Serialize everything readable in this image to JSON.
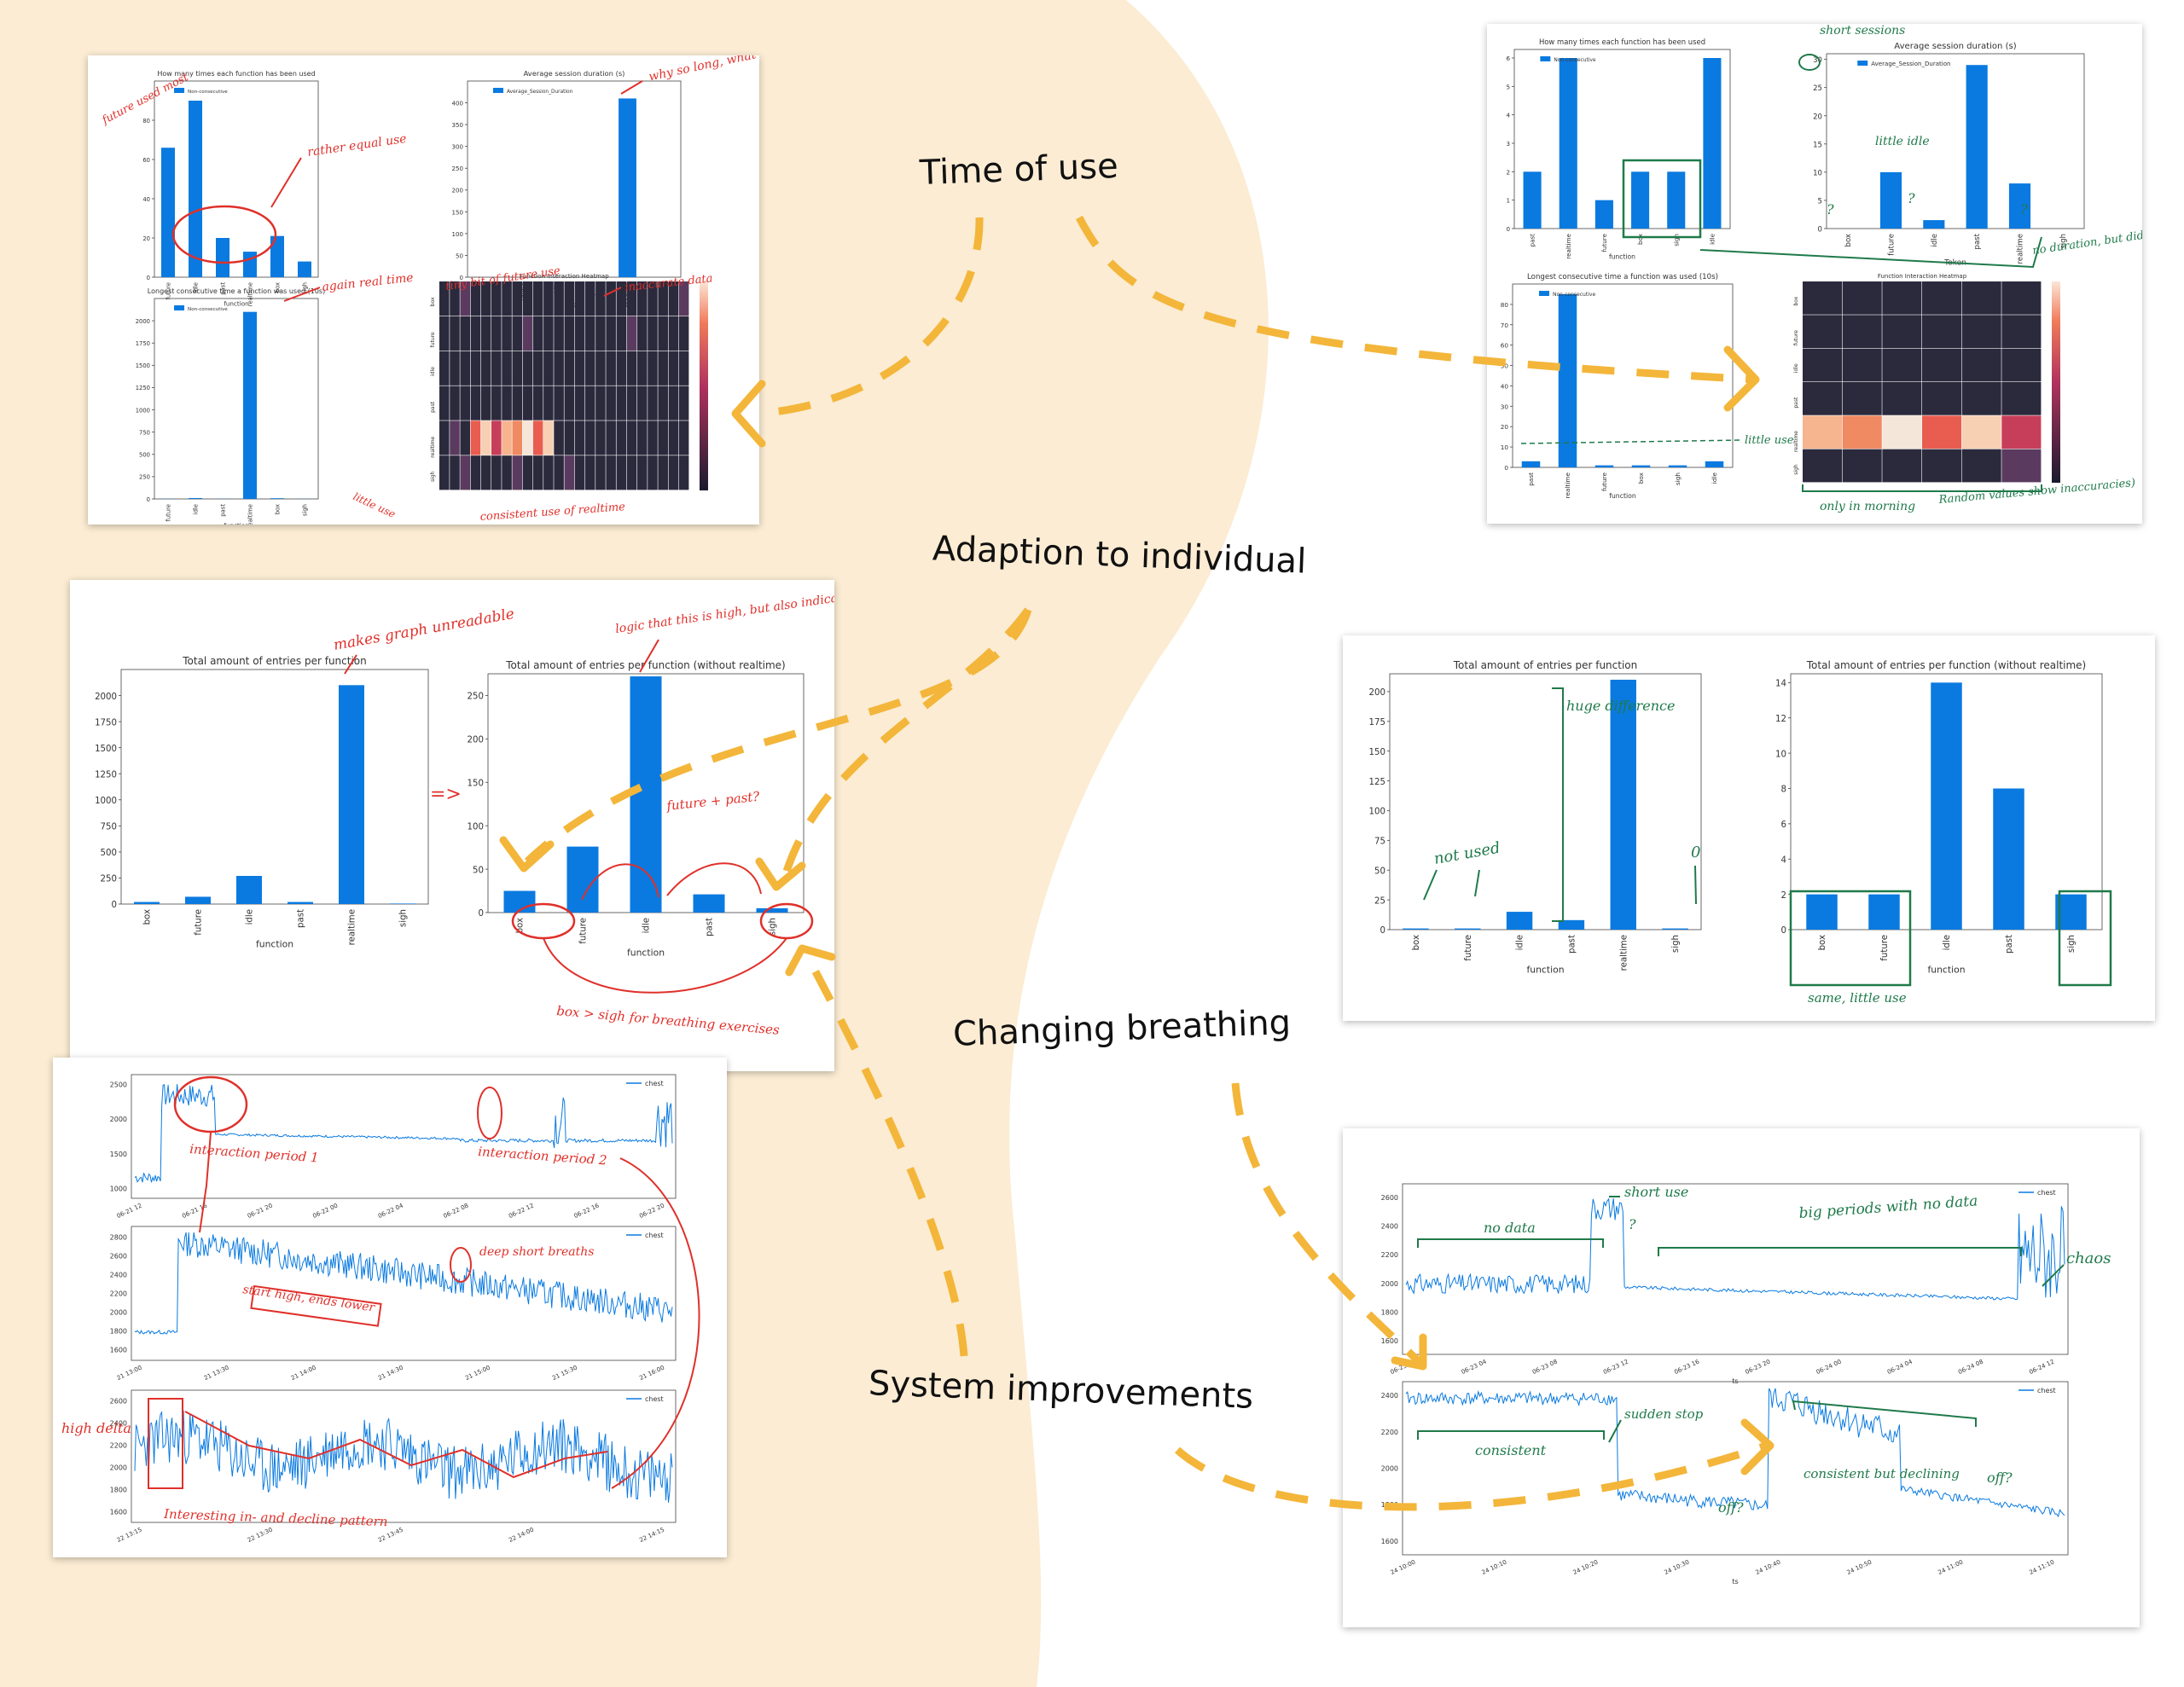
{
  "themes": {
    "time_of_use": "Time of use",
    "adaption": "Adaption to individual",
    "breathing": "Changing breathing",
    "system": "System improvements"
  },
  "colors": {
    "background_blob": "#fbecd3",
    "bar_blue": "#0a7ae0",
    "red_ink": "#e0302a",
    "green_ink": "#1f7a4a",
    "arrow_yellow": "#f3b63a"
  },
  "chart_data": [
    {
      "id": "p1a",
      "type": "bar",
      "title": "How many times each function has been used",
      "legend": [
        "Non-consecutive"
      ],
      "categories": [
        "future",
        "idle",
        "past",
        "realtime",
        "box",
        "sigh"
      ],
      "values": [
        66,
        90,
        20,
        13,
        21,
        8
      ],
      "xlabel": "function",
      "ylim": [
        0,
        100
      ],
      "yticks": [
        "0",
        "20",
        "40",
        "60",
        "80"
      ]
    },
    {
      "id": "p1b",
      "type": "bar",
      "title": "Average session duration (s)",
      "legend": [
        "Average_Session_Duration"
      ],
      "categories": [
        "box",
        "future",
        "idle",
        "past",
        "realtime",
        "sigh"
      ],
      "values": [
        0,
        0,
        0,
        0,
        410,
        0
      ],
      "xlabel": "Token",
      "ylim": [
        0,
        450
      ],
      "yticks": [
        "0",
        "50",
        "100",
        "150",
        "200",
        "250",
        "300",
        "350",
        "400"
      ]
    },
    {
      "id": "p1c",
      "type": "bar",
      "title": "Longest consecutive time a function was used (10s)",
      "legend": [
        "Non-consecutive"
      ],
      "categories": [
        "future",
        "idle",
        "past",
        "realtime",
        "box",
        "sigh"
      ],
      "values": [
        2,
        10,
        2,
        2100,
        8,
        2
      ],
      "xlabel": "function",
      "ylim": [
        0,
        2250
      ],
      "yticks": [
        "0",
        "250",
        "500",
        "750",
        "1000",
        "1250",
        "1500",
        "1750",
        "2000"
      ]
    },
    {
      "id": "p1d",
      "type": "heatmap",
      "title": "Function Interaction Heatmap",
      "rows": [
        "box",
        "future",
        "idle",
        "past",
        "realtime",
        "sigh"
      ],
      "columns": 24,
      "xlabel": "Hour of the Day",
      "ylabel": "Function"
    },
    {
      "id": "p2a",
      "type": "bar",
      "title": "How many times each function has been used",
      "legend": [
        "Non-consecutive"
      ],
      "categories": [
        "past",
        "realtime",
        "future",
        "box",
        "sigh",
        "idle"
      ],
      "values": [
        2,
        6,
        1,
        2,
        2,
        6
      ],
      "xlabel": "function",
      "ylim": [
        0,
        6.3
      ],
      "yticks": [
        "0",
        "1",
        "2",
        "3",
        "4",
        "5",
        "6"
      ]
    },
    {
      "id": "p2b",
      "type": "bar",
      "title": "Average session duration (s)",
      "legend": [
        "Average_Session_Duration"
      ],
      "categories": [
        "box",
        "future",
        "idle",
        "past",
        "realtime",
        "sigh"
      ],
      "values": [
        0,
        10,
        1.5,
        29,
        8,
        0
      ],
      "xlabel": "Token",
      "ylim": [
        0,
        31
      ],
      "yticks": [
        "0",
        "5",
        "10",
        "15",
        "20",
        "25",
        "30"
      ]
    },
    {
      "id": "p2c",
      "type": "bar",
      "title": "Longest consecutive time a function was used (10s)",
      "legend": [
        "Non-consecutive"
      ],
      "categories": [
        "past",
        "realtime",
        "future",
        "box",
        "sigh",
        "idle"
      ],
      "values": [
        3,
        85,
        1,
        1,
        1,
        3
      ],
      "xlabel": "function",
      "ylim": [
        0,
        90
      ],
      "yticks": [
        "0",
        "10",
        "20",
        "30",
        "40",
        "50",
        "60",
        "70",
        "80"
      ]
    },
    {
      "id": "p2d",
      "type": "heatmap",
      "title": "Function Interaction Heatmap",
      "rows": [
        "box",
        "future",
        "idle",
        "past",
        "realtime",
        "sigh"
      ],
      "columns": 6
    },
    {
      "id": "p3a",
      "type": "bar",
      "title": "Total amount of entries per function",
      "categories": [
        "box",
        "future",
        "idle",
        "past",
        "realtime",
        "sigh"
      ],
      "values": [
        20,
        70,
        270,
        20,
        2100,
        5
      ],
      "xlabel": "function",
      "ylim": [
        0,
        2250
      ],
      "yticks": [
        "0",
        "250",
        "500",
        "750",
        "1000",
        "1250",
        "1500",
        "1750",
        "2000"
      ]
    },
    {
      "id": "p3b",
      "type": "bar",
      "title": "Total amount of entries per function (without realtime)",
      "categories": [
        "box",
        "future",
        "idle",
        "past",
        "sigh"
      ],
      "values": [
        25,
        76,
        272,
        21,
        5
      ],
      "xlabel": "function",
      "ylim": [
        0,
        275
      ],
      "yticks": [
        "0",
        "50",
        "100",
        "150",
        "200",
        "250"
      ]
    },
    {
      "id": "p4a",
      "type": "bar",
      "title": "Total amount of entries per function",
      "categories": [
        "box",
        "future",
        "idle",
        "past",
        "realtime",
        "sigh"
      ],
      "values": [
        1,
        1,
        15,
        8,
        210,
        1
      ],
      "xlabel": "function",
      "ylim": [
        0,
        215
      ],
      "yticks": [
        "0",
        "25",
        "50",
        "75",
        "100",
        "125",
        "150",
        "175",
        "200"
      ]
    },
    {
      "id": "p4b",
      "type": "bar",
      "title": "Total amount of entries per function (without realtime)",
      "categories": [
        "box",
        "future",
        "idle",
        "past",
        "sigh"
      ],
      "values": [
        2,
        2,
        14,
        8,
        2
      ],
      "xlabel": "function",
      "ylim": [
        0,
        14.5
      ],
      "yticks": [
        "0",
        "2",
        "4",
        "6",
        "8",
        "10",
        "12",
        "14"
      ]
    },
    {
      "id": "p5a",
      "type": "line",
      "legend": [
        "chest"
      ],
      "yticks": [
        "2500",
        "2000",
        "1500",
        "1000"
      ],
      "xticks": [
        "06-21 12",
        "06-21 16",
        "06-21 20",
        "06-22 00",
        "06-22 04",
        "06-22 08",
        "06-22 12",
        "06-22 16",
        "06-22 20"
      ]
    },
    {
      "id": "p5b",
      "type": "line",
      "legend": [
        "chest"
      ],
      "yticks": [
        "2800",
        "2600",
        "2400",
        "2200",
        "2000",
        "1800",
        "1600"
      ],
      "xticks": [
        "21 13:00",
        "21 13:30",
        "21 14:00",
        "21 14:30",
        "21 15:00",
        "21 15:30",
        "21 16:00"
      ]
    },
    {
      "id": "p5c",
      "type": "line",
      "legend": [
        "chest"
      ],
      "yticks": [
        "2600",
        "2400",
        "2200",
        "2000",
        "1800",
        "1600"
      ],
      "xticks": [
        "22 13:15",
        "22 13:30",
        "22 13:45",
        "22 14:00",
        "22 14:15"
      ]
    },
    {
      "id": "p6a",
      "type": "line",
      "legend": [
        "chest"
      ],
      "yticks": [
        "2600",
        "2400",
        "2200",
        "2000",
        "1800",
        "1600"
      ],
      "xticks": [
        "06-23 00",
        "06-23 04",
        "06-23 08",
        "06-23 12",
        "06-23 16",
        "06-23 20",
        "06-24 00",
        "06-24 04",
        "06-24 08",
        "06-24 12"
      ],
      "xlabel": "ts"
    },
    {
      "id": "p6b",
      "type": "line",
      "legend": [
        "chest"
      ],
      "yticks": [
        "2400",
        "2200",
        "2000",
        "1800",
        "1600"
      ],
      "xticks": [
        "24 10:00",
        "24 10:10",
        "24 10:20",
        "24 10:30",
        "24 10:40",
        "24 10:50",
        "24 11:00",
        "24 11:10"
      ],
      "xlabel": "ts"
    }
  ],
  "notes": {
    "p1": {
      "future_used_most": "future used most",
      "rather_equal": "rather equal use",
      "why_so_long": "why so long, what happened?",
      "again_realtime": "again real time",
      "tiny_bit": "tiny bit of future use",
      "inaccurate": "inaccurate data",
      "consistent": "consistent use of realtime",
      "little_use": "little use"
    },
    "p2": {
      "short_sessions": "short sessions",
      "little_idle": "little idle",
      "q1": "?",
      "q2": "?",
      "q3": "?",
      "no_duration": "no duration, but did use",
      "little_use": "little use",
      "morning": "only in morning",
      "random": "Random values show inaccuracies)"
    },
    "p3": {
      "unreadable": "makes graph unreadable",
      "logic": "logic that this is high, but also indicates high levels of no use",
      "arrow": "=>",
      "future_past": "future + past?",
      "box_sigh": "box > sigh for breathing exercises"
    },
    "p4": {
      "not_used": "not used",
      "huge": "huge difference",
      "zero": "0",
      "same": "same, little use"
    },
    "p5": {
      "period1": "interaction period 1",
      "period2": "interaction period 2",
      "deep_short": "deep short breaths",
      "start_high": "start high, ends lower",
      "high_delta": "high delta",
      "pattern": "Interesting in- and decline pattern"
    },
    "p6": {
      "short_use": "short use",
      "no_data": "no data",
      "big_periods": "big periods with no data",
      "chaos": "chaos",
      "qm": "?",
      "sudden_stop": "sudden stop",
      "consistent": "consistent",
      "consistent_declining": "consistent but declining",
      "off1": "off?",
      "off2": "off?"
    }
  }
}
